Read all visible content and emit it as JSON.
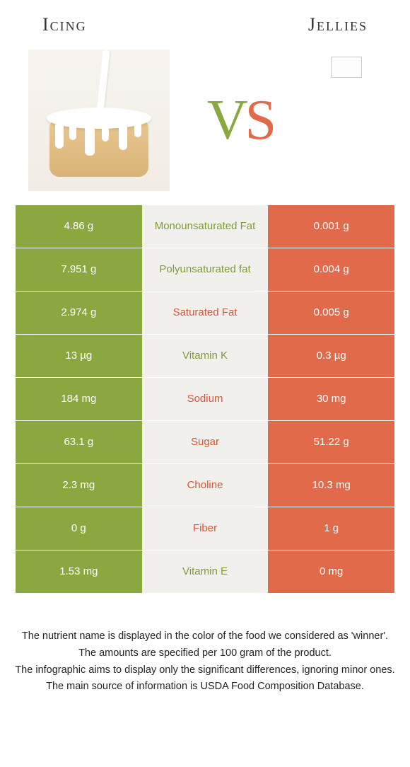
{
  "header": {
    "left": "Icing",
    "right": "Jellies"
  },
  "vs": {
    "letter_v": "V",
    "letter_s": "S",
    "v_color": "#8aa83f",
    "s_color": "#e06a4a"
  },
  "colors": {
    "left_bg": "#8aa83f",
    "mid_bg": "#f2f0ed",
    "right_bg": "#e06a4a",
    "left_text": "#ffffff",
    "right_text": "#ffffff",
    "winner_left": "#7e9a39",
    "winner_right": "#d2573a"
  },
  "rows": [
    {
      "left": "4.86 g",
      "label": "Monounsaturated Fat",
      "right": "0.001 g",
      "winner": "left"
    },
    {
      "left": "7.951 g",
      "label": "Polyunsaturated fat",
      "right": "0.004 g",
      "winner": "left"
    },
    {
      "left": "2.974 g",
      "label": "Saturated Fat",
      "right": "0.005 g",
      "winner": "right"
    },
    {
      "left": "13 µg",
      "label": "Vitamin K",
      "right": "0.3 µg",
      "winner": "left"
    },
    {
      "left": "184 mg",
      "label": "Sodium",
      "right": "30 mg",
      "winner": "right"
    },
    {
      "left": "63.1 g",
      "label": "Sugar",
      "right": "51.22 g",
      "winner": "right"
    },
    {
      "left": "2.3 mg",
      "label": "Choline",
      "right": "10.3 mg",
      "winner": "right"
    },
    {
      "left": "0 g",
      "label": "Fiber",
      "right": "1 g",
      "winner": "right"
    },
    {
      "left": "1.53 mg",
      "label": "Vitamin E",
      "right": "0 mg",
      "winner": "left"
    }
  ],
  "footer": {
    "line1": "The nutrient name is displayed in the color of the food we considered as 'winner'.",
    "line2": "The amounts are specified per 100 gram of the product.",
    "line3": "The infographic aims to display only the significant differences, ignoring minor ones.",
    "line4": "The main source of information is USDA Food Composition Database."
  }
}
